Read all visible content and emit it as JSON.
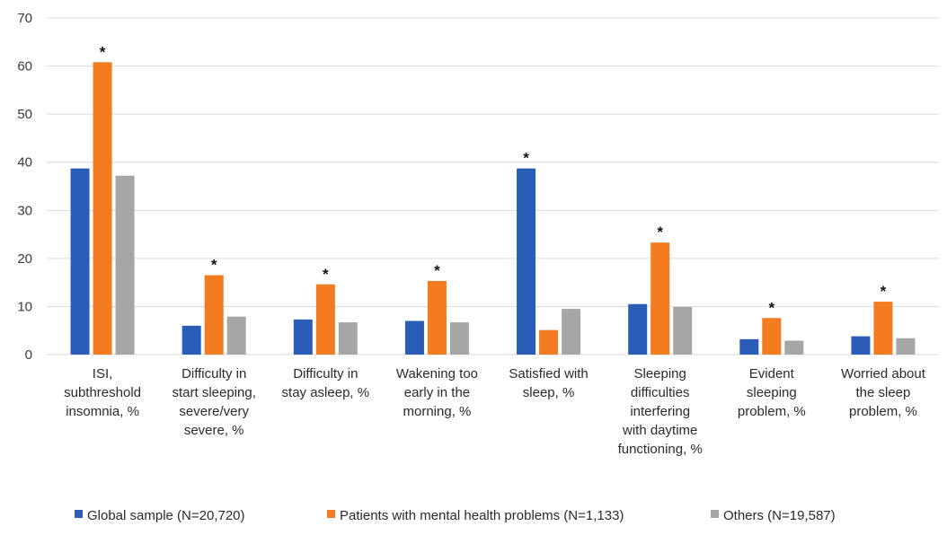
{
  "chart_data": {
    "type": "bar",
    "categories": [
      [
        "ISI,",
        "subthreshold",
        "insomnia, %"
      ],
      [
        "Difficulty in",
        "start sleeping,",
        "severe/very",
        "severe,  %"
      ],
      [
        "Difficulty in",
        "stay asleep, %"
      ],
      [
        "Wakening too",
        "early in the",
        "morning, %"
      ],
      [
        "Satisfied with",
        "sleep,  %"
      ],
      [
        "Sleeping",
        "difficulties",
        "interfering",
        "with daytime",
        "functioning, %"
      ],
      [
        "Evident",
        "sleeping",
        "problem, %"
      ],
      [
        "Worried about",
        "the sleep",
        "problem, %"
      ]
    ],
    "series": [
      {
        "name": "Global sample (N=20,720)",
        "color": "#2a5db8",
        "values": [
          38.7,
          6.0,
          7.3,
          7.0,
          38.7,
          10.5,
          3.2,
          3.8
        ]
      },
      {
        "name": "Patients with mental health problems (N=1,133)",
        "color": "#f27c1f",
        "values": [
          60.8,
          16.5,
          14.6,
          15.3,
          5.1,
          23.3,
          7.6,
          11.0
        ]
      },
      {
        "name": "Others (N=19,587)",
        "color": "#a6a6a6",
        "values": [
          37.2,
          7.9,
          6.7,
          6.7,
          9.5,
          9.9,
          2.9,
          3.4
        ]
      }
    ],
    "annotations": [
      "*",
      "*",
      "*",
      "*",
      "*",
      "*",
      "*",
      "*"
    ],
    "ylim": [
      0,
      70
    ],
    "yticks": [
      0,
      10,
      20,
      30,
      40,
      50,
      60,
      70
    ],
    "grid": true,
    "legend_position": "bottom"
  }
}
